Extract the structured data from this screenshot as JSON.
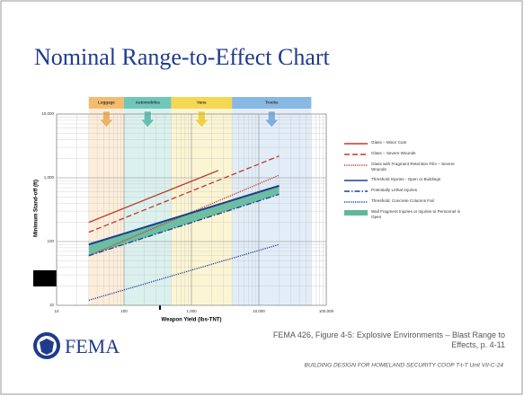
{
  "title": "Nominal Range-to-Effect Chart",
  "chart_data": {
    "type": "line",
    "x_label": "Weapon Yield (lbs-TNT)",
    "y_label": "Minimum Stand-off (ft)",
    "log_x": true,
    "log_y": true,
    "grid": true,
    "xlim": [
      10,
      100000
    ],
    "xticks": [
      10,
      100,
      {
        "value": 1000,
        "label": "1,000"
      },
      {
        "value": 10000,
        "label": "10,000"
      },
      {
        "value": 100000,
        "label": "100,000"
      }
    ],
    "ylim": [
      10,
      10000
    ],
    "yticks": [
      10,
      100,
      {
        "value": 1000,
        "label": "1,000"
      },
      {
        "value": 10000,
        "label": "10,000"
      }
    ],
    "categories": [
      {
        "name": "Luggage",
        "range": [
          30,
          100
        ],
        "color": "#f5b15a"
      },
      {
        "name": "Automobiles",
        "range": [
          100,
          500
        ],
        "color": "#5cc0b0"
      },
      {
        "name": "Vans",
        "range": [
          500,
          4000
        ],
        "color": "#f3d23a"
      },
      {
        "name": "Trucks",
        "range": [
          4000,
          60000
        ],
        "color": "#79aee0"
      }
    ],
    "series": [
      {
        "name": "Glass – Minor Cuts",
        "color": "#c0392b",
        "dash": "solid",
        "x": [
          30,
          2500
        ],
        "values": [
          200,
          1300
        ]
      },
      {
        "name": "Glass – Severe Wounds",
        "color": "#c0392b",
        "dash": "dashed",
        "x": [
          30,
          20000
        ],
        "values": [
          140,
          2200
        ]
      },
      {
        "name": "Glass with Fragment Retention Film – Severe Wounds",
        "color": "#c0392b",
        "dash": "dotted",
        "x": [
          30,
          20000
        ],
        "values": [
          60,
          1100
        ]
      },
      {
        "name": "Threshold Injuries - Open or Buildings",
        "color": "#1f3f8f",
        "dash": "solid",
        "x": [
          30,
          20000
        ],
        "values": [
          90,
          750
        ]
      },
      {
        "name": "Potentially Lethal Injuries",
        "color": "#1f3f8f",
        "dash": "dashdot",
        "x": [
          30,
          20000
        ],
        "values": [
          60,
          550
        ]
      },
      {
        "name": "Threshold, Concrete Columns Fail",
        "color": "#1f3f8f",
        "dash": "dotted",
        "x": [
          30,
          20000
        ],
        "values": [
          12,
          90
        ]
      },
      {
        "name": "Wall Fragment Injuries or Injuries to Personnel in Open",
        "color": "#5fb89a",
        "dash": "band",
        "x": [
          30,
          20000
        ],
        "values": [
          90,
          750
        ],
        "lower": [
          60,
          550
        ]
      }
    ]
  },
  "footer": {
    "logo": "FEMA",
    "citation": "FEMA 426, Figure 4-5: Explosive Environments – Blast Range to Effects, p. 4-11",
    "course": "BUILDING DESIGN FOR HOMELAND SECURITY COOP T-t-T Unit VII-C-24"
  }
}
